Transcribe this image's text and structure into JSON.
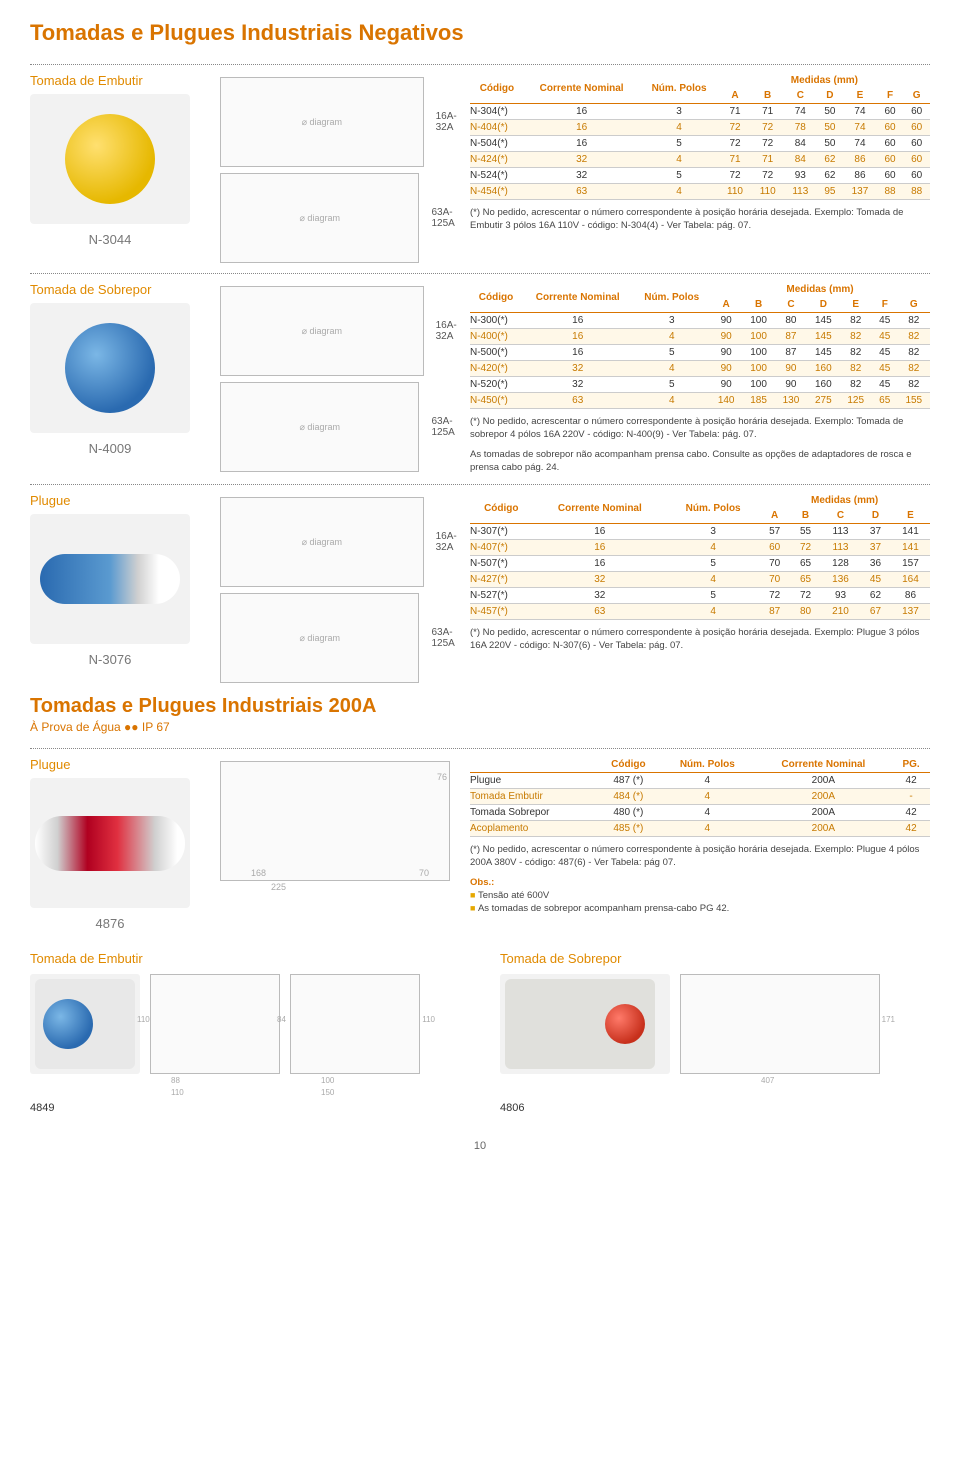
{
  "page_title": "Tomadas e Plugues Industriais Negativos",
  "section2_title": "Tomadas e Plugues Industriais 200A",
  "section2_sub": "À Prova de Água ●● IP 67",
  "labels": {
    "codigo": "Código",
    "corrente": "Corrente Nominal",
    "polos": "Núm. Polos",
    "medidas": "Medidas (mm)",
    "pg": "PG.",
    "range1": "16A-32A",
    "range2": "63A-125A",
    "obs": "Obs.:"
  },
  "products": {
    "embutir": {
      "title": "Tomada de Embutir",
      "code": "N-3044",
      "cols": [
        "A",
        "B",
        "C",
        "D",
        "E",
        "F",
        "G"
      ],
      "rows": [
        [
          "N-304(*)",
          "16",
          "3",
          "71",
          "71",
          "74",
          "50",
          "74",
          "60",
          "60"
        ],
        [
          "N-404(*)",
          "16",
          "4",
          "72",
          "72",
          "78",
          "50",
          "74",
          "60",
          "60"
        ],
        [
          "N-504(*)",
          "16",
          "5",
          "72",
          "72",
          "84",
          "50",
          "74",
          "60",
          "60"
        ],
        [
          "N-424(*)",
          "32",
          "4",
          "71",
          "71",
          "84",
          "62",
          "86",
          "60",
          "60"
        ],
        [
          "N-524(*)",
          "32",
          "5",
          "72",
          "72",
          "93",
          "62",
          "86",
          "60",
          "60"
        ],
        [
          "N-454(*)",
          "63",
          "4",
          "110",
          "110",
          "113",
          "95",
          "137",
          "88",
          "88"
        ]
      ],
      "note": "(*) No pedido, acrescentar o número correspondente à posição horária desejada. Exemplo: Tomada de Embutir 3 pólos 16A 110V - código: N-304(4) - Ver Tabela: pág. 07."
    },
    "sobrepor": {
      "title": "Tomada de Sobrepor",
      "code": "N-4009",
      "cols": [
        "A",
        "B",
        "C",
        "D",
        "E",
        "F",
        "G"
      ],
      "rows": [
        [
          "N-300(*)",
          "16",
          "3",
          "90",
          "100",
          "80",
          "145",
          "82",
          "45",
          "82"
        ],
        [
          "N-400(*)",
          "16",
          "4",
          "90",
          "100",
          "87",
          "145",
          "82",
          "45",
          "82"
        ],
        [
          "N-500(*)",
          "16",
          "5",
          "90",
          "100",
          "87",
          "145",
          "82",
          "45",
          "82"
        ],
        [
          "N-420(*)",
          "32",
          "4",
          "90",
          "100",
          "90",
          "160",
          "82",
          "45",
          "82"
        ],
        [
          "N-520(*)",
          "32",
          "5",
          "90",
          "100",
          "90",
          "160",
          "82",
          "45",
          "82"
        ],
        [
          "N-450(*)",
          "63",
          "4",
          "140",
          "185",
          "130",
          "275",
          "125",
          "65",
          "155"
        ]
      ],
      "note": "(*) No pedido, acrescentar o número correspondente à posição horária desejada. Exemplo: Tomada de sobrepor 4 pólos 16A 220V - código: N-400(9) - Ver Tabela: pág. 07.",
      "note2": "As tomadas de sobrepor não acompanham prensa cabo. Consulte as opções de adaptadores de rosca e prensa cabo pág. 24."
    },
    "plugue": {
      "title": "Plugue",
      "code": "N-3076",
      "cols": [
        "A",
        "B",
        "C",
        "D",
        "E"
      ],
      "rows": [
        [
          "N-307(*)",
          "16",
          "3",
          "57",
          "55",
          "113",
          "37",
          "141"
        ],
        [
          "N-407(*)",
          "16",
          "4",
          "60",
          "72",
          "113",
          "37",
          "141"
        ],
        [
          "N-507(*)",
          "16",
          "5",
          "70",
          "65",
          "128",
          "36",
          "157"
        ],
        [
          "N-427(*)",
          "32",
          "4",
          "70",
          "65",
          "136",
          "45",
          "164"
        ],
        [
          "N-527(*)",
          "32",
          "5",
          "72",
          "72",
          "93",
          "62",
          "86"
        ],
        [
          "N-457(*)",
          "63",
          "4",
          "87",
          "80",
          "210",
          "67",
          "137"
        ]
      ],
      "note": "(*) No pedido, acrescentar o número correspondente à posição horária desejada. Exemplo: Plugue 3 pólos 16A 220V - código: N-307(6) - Ver Tabela: pág. 07."
    },
    "plugue200": {
      "title": "Plugue",
      "code": "4876",
      "headers": [
        "",
        "Código",
        "Núm. Polos",
        "Corrente Nominal",
        "PG."
      ],
      "rows": [
        [
          "Plugue",
          "487 (*)",
          "4",
          "200A",
          "42"
        ],
        [
          "Tomada Embutir",
          "484 (*)",
          "4",
          "200A",
          "-"
        ],
        [
          "Tomada Sobrepor",
          "480 (*)",
          "4",
          "200A",
          "42"
        ],
        [
          "Acoplamento",
          "485 (*)",
          "4",
          "200A",
          "42"
        ]
      ],
      "note": "(*) No pedido, acrescentar o número correspondente à posição horária desejada. Exemplo: Plugue 4 pólos 200A 380V - código: 487(6) -  Ver Tabela: pág 07.",
      "obs1": "Tensão até 600V",
      "obs2": "As tomadas de sobrepor acompanham prensa-cabo PG 42.",
      "dims": {
        "a": "168",
        "b": "225",
        "c": "70",
        "d": "76"
      }
    },
    "embutir200": {
      "title": "Tomada de Embutir",
      "code": "4849",
      "dims": {
        "a": "88",
        "b": "110",
        "c": "110",
        "d": "84",
        "e": "100",
        "f": "150",
        "g": "110"
      }
    },
    "sobrepor200": {
      "title": "Tomada de Sobrepor",
      "code": "4806",
      "dims": {
        "a": "407",
        "b": "171"
      }
    }
  },
  "page_number": "10",
  "style": {
    "accent": "#d97400",
    "accent_light": "#e6a800",
    "stripe_bg": "#fff8e8",
    "stripe_fg": "#c77a00",
    "body_text": "#333333",
    "grid": "#cccccc",
    "font_family": "Arial",
    "title_fontsize_pt": 16,
    "table_fontsize_pt": 7.5
  }
}
